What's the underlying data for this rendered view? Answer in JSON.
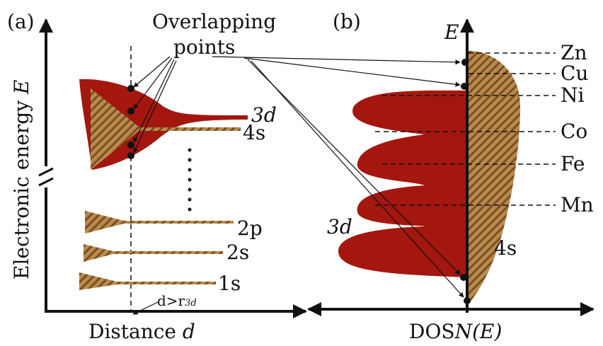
{
  "panel_a": {
    "label": "(a)",
    "annotation_line1": "Overlapping",
    "annotation_line2": "points",
    "y_axis_label": "Electronic energy",
    "y_axis_symbol": "E",
    "x_axis_label": "Distance",
    "x_axis_symbol": "d",
    "levels": [
      "3d",
      "4s",
      "2p",
      "2s",
      "1s"
    ],
    "distance_note": "d>r",
    "distance_note_sub": "3d"
  },
  "panel_b": {
    "label": "(b)",
    "y_axis_symbol": "E",
    "x_axis_label": "DOS",
    "x_axis_symbol": "N(E)",
    "elements": [
      "Zn",
      "Cu",
      "Ni",
      "Co",
      "Fe",
      "Mn"
    ],
    "band_3d": "3d",
    "band_4s": "4s"
  }
}
